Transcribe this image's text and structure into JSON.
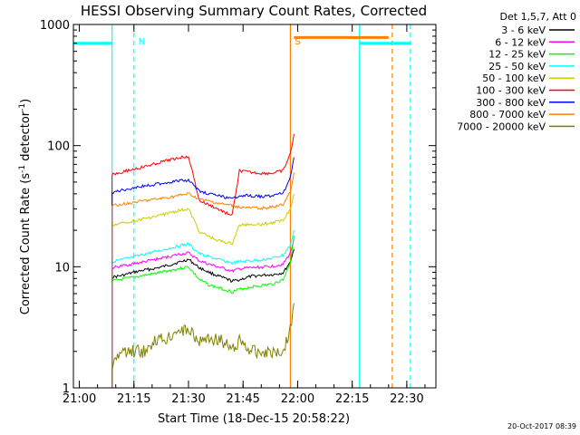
{
  "chart_data": {
    "type": "line",
    "title": "HESSI Observing Summary Count Rates, Corrected",
    "xlabel": "Start Time (18-Dec-15 20:58:22)",
    "ylabel_main": "Corrected Count Rate (s",
    "ylabel_sup1": "-1",
    "ylabel_mid": " detector",
    "ylabel_sup2": "-1",
    "ylabel_end": ")",
    "yscale": "log",
    "ylim": [
      1,
      1000
    ],
    "xlim": [
      "20:58:22",
      "22:38:00"
    ],
    "x_ticks": [
      {
        "t": "21:00",
        "label": "21:00"
      },
      {
        "t": "21:15",
        "label": "21:15"
      },
      {
        "t": "21:30",
        "label": "21:30"
      },
      {
        "t": "21:45",
        "label": "21:45"
      },
      {
        "t": "22:00",
        "label": "22:00"
      },
      {
        "t": "22:15",
        "label": "22:15"
      },
      {
        "t": "22:30",
        "label": "22:30"
      }
    ],
    "y_ticks": [
      {
        "v": 1,
        "label": "1"
      },
      {
        "v": 10,
        "label": "10"
      },
      {
        "v": 100,
        "label": "100"
      },
      {
        "v": 1000,
        "label": "1000"
      }
    ],
    "legend_title": "Det 1,5,7, Att 0",
    "legend_placement": "right",
    "timestamp": "20-Oct-2017 08:39",
    "series": [
      {
        "name": "3 - 6 keV",
        "color": "#000000",
        "x": [
          "21:09",
          "21:12",
          "21:15",
          "21:18",
          "21:21",
          "21:24",
          "21:27",
          "21:30",
          "21:33",
          "21:36",
          "21:39",
          "21:42",
          "21:44",
          "21:47",
          "21:50",
          "21:53",
          "21:56",
          "21:58",
          "21:59"
        ],
        "y": [
          8.2,
          8.5,
          9.0,
          9.4,
          9.7,
          10.2,
          10.8,
          11.5,
          9.8,
          8.9,
          8.2,
          7.6,
          7.8,
          8.3,
          8.5,
          8.6,
          8.9,
          11,
          14
        ]
      },
      {
        "name": "6 - 12 keV",
        "color": "#ff00ff",
        "x": [
          "21:09",
          "21:12",
          "21:15",
          "21:18",
          "21:21",
          "21:24",
          "21:27",
          "21:30",
          "21:33",
          "21:36",
          "21:39",
          "21:42",
          "21:44",
          "21:47",
          "21:50",
          "21:53",
          "21:56",
          "21:58",
          "21:59"
        ],
        "y": [
          9.8,
          10.2,
          10.6,
          11,
          11.5,
          12,
          12.6,
          13,
          11.2,
          10.4,
          9.8,
          9.2,
          9.6,
          9.8,
          9.9,
          10.1,
          10.5,
          13,
          17
        ]
      },
      {
        "name": "12 - 25 keV",
        "color": "#00ff00",
        "x": [
          "21:09",
          "21:12",
          "21:15",
          "21:18",
          "21:21",
          "21:24",
          "21:27",
          "21:30",
          "21:33",
          "21:36",
          "21:39",
          "21:42",
          "21:44",
          "21:47",
          "21:50",
          "21:53",
          "21:56",
          "21:58",
          "21:59"
        ],
        "y": [
          7.6,
          7.9,
          8.2,
          8.5,
          8.8,
          9.2,
          9.6,
          10,
          7.8,
          7.0,
          6.6,
          6.2,
          6.5,
          6.8,
          7.0,
          7.2,
          7.8,
          11,
          18
        ]
      },
      {
        "name": "25 - 50 keV",
        "color": "#00ffff",
        "x": [
          "21:09",
          "21:12",
          "21:15",
          "21:18",
          "21:21",
          "21:24",
          "21:27",
          "21:30",
          "21:33",
          "21:36",
          "21:39",
          "21:42",
          "21:44",
          "21:47",
          "21:50",
          "21:53",
          "21:56",
          "21:58",
          "21:59"
        ],
        "y": [
          11,
          11.5,
          12,
          12.7,
          13.3,
          14,
          14.8,
          15.4,
          12.8,
          12,
          11.3,
          10.7,
          11,
          11.2,
          11.4,
          11.7,
          12.5,
          15,
          20
        ]
      },
      {
        "name": "50 - 100 keV",
        "color": "#cccc00",
        "x": [
          "21:09",
          "21:12",
          "21:15",
          "21:18",
          "21:21",
          "21:24",
          "21:27",
          "21:30",
          "21:33",
          "21:36",
          "21:39",
          "21:42",
          "21:44",
          "21:47",
          "21:50",
          "21:53",
          "21:56",
          "21:58",
          "21:59"
        ],
        "y": [
          22,
          23,
          24,
          25,
          26,
          27.5,
          29,
          30,
          19.5,
          17.5,
          16.2,
          15.5,
          22,
          22.5,
          22.5,
          23,
          24.5,
          30,
          40
        ]
      },
      {
        "name": "100 - 300 keV",
        "color": "#ff0000",
        "x": [
          "21:09",
          "21:12",
          "21:15",
          "21:18",
          "21:21",
          "21:24",
          "21:27",
          "21:30",
          "21:33",
          "21:36",
          "21:39",
          "21:42",
          "21:44",
          "21:47",
          "21:50",
          "21:53",
          "21:56",
          "21:58",
          "21:59"
        ],
        "y": [
          58,
          61,
          64,
          67,
          71,
          75,
          79,
          82,
          35,
          32,
          29,
          26.5,
          62,
          60,
          59,
          59,
          62,
          85,
          125
        ]
      },
      {
        "name": "300 - 800 keV",
        "color": "#0000ff",
        "x": [
          "21:09",
          "21:12",
          "21:15",
          "21:18",
          "21:21",
          "21:24",
          "21:27",
          "21:30",
          "21:33",
          "21:36",
          "21:39",
          "21:42",
          "21:44",
          "21:47",
          "21:50",
          "21:53",
          "21:56",
          "21:58",
          "21:59"
        ],
        "y": [
          41,
          43,
          45,
          46.5,
          48,
          49.5,
          51,
          52,
          42,
          40,
          38,
          36,
          39,
          38.5,
          38,
          38.5,
          40.5,
          55,
          80
        ]
      },
      {
        "name": "800 - 7000 keV",
        "color": "#ff8000",
        "x": [
          "21:09",
          "21:12",
          "21:15",
          "21:18",
          "21:21",
          "21:24",
          "21:27",
          "21:30",
          "21:33",
          "21:36",
          "21:39",
          "21:42",
          "21:44",
          "21:47",
          "21:50",
          "21:53",
          "21:56",
          "21:58",
          "21:59"
        ],
        "y": [
          32,
          33,
          34,
          35,
          36,
          37,
          38.5,
          40,
          36,
          34.5,
          33,
          32,
          31,
          30.5,
          30.5,
          31,
          32.5,
          42,
          60
        ]
      },
      {
        "name": "7000 - 20000 keV",
        "color": "#808000",
        "x": [
          "21:09",
          "21:12",
          "21:15",
          "21:18",
          "21:21",
          "21:24",
          "21:27",
          "21:30",
          "21:33",
          "21:36",
          "21:39",
          "21:42",
          "21:44",
          "21:47",
          "21:50",
          "21:53",
          "21:56",
          "21:58",
          "21:59"
        ],
        "y": [
          1.5,
          2,
          2,
          2,
          2.5,
          2.5,
          3,
          3,
          2.5,
          2.5,
          2.5,
          2,
          2.5,
          2,
          2,
          2,
          2,
          3,
          5
        ]
      }
    ],
    "attenuator_segments": [
      {
        "color": "#00ffff",
        "from": "20:58:22",
        "to": "21:09",
        "level": 700
      },
      {
        "color": "#ff8000",
        "from": "21:59",
        "to": "22:25",
        "level": 780
      },
      {
        "color": "#00ffff",
        "from": "22:17",
        "to": "22:31",
        "level": 700
      }
    ],
    "markers": [
      {
        "label": "N",
        "color": "#00ffff",
        "t": "21:15",
        "dashed": true
      },
      {
        "label": "S",
        "color": "#ff8000",
        "t": "21:58",
        "dashed": false
      },
      {
        "label": "",
        "color": "#00ffff",
        "t": "21:09",
        "dashed": false
      },
      {
        "label": "",
        "color": "#00ffff",
        "t": "22:17",
        "dashed": false
      },
      {
        "label": "",
        "color": "#ff8000",
        "t": "22:26",
        "dashed": true
      },
      {
        "label": "",
        "color": "#00ffff",
        "t": "22:31",
        "dashed": true
      }
    ]
  }
}
